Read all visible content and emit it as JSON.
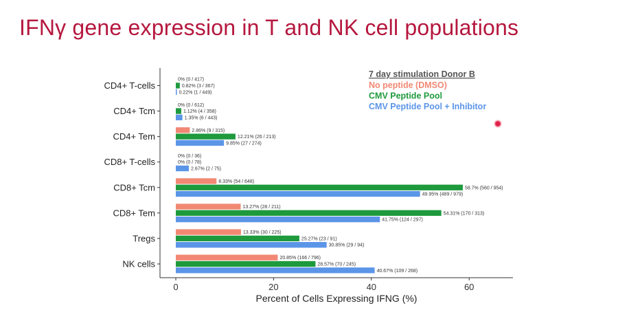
{
  "slide": {
    "title": "IFNγ gene expression in T and NK cell populations"
  },
  "colors": {
    "title": "#b5173e",
    "no_peptide": "#f28874",
    "cmv_pool": "#1e9a3d",
    "cmv_inhibitor": "#5b95e8"
  },
  "chart_data": {
    "type": "bar",
    "orientation": "horizontal",
    "legend_title": "7 day stimulation Donor B",
    "legend_position": "top-right",
    "xlabel": "Percent of Cells Expressing IFNG (%)",
    "ylabel": "",
    "xlim": [
      0,
      67
    ],
    "xticks": [
      "0",
      "20",
      "40",
      "60"
    ],
    "grid": false,
    "categories": [
      "CD4+ T-cells",
      "CD4+ Tcm",
      "CD4+ Tem",
      "CD8+ T-cells",
      "CD8+ Tcm",
      "CD8+ Tem",
      "Tregs",
      "NK cells"
    ],
    "series": [
      {
        "name": "No peptide (DMSO)",
        "color": "#f28874",
        "values": [
          0,
          0,
          2.86,
          0,
          8.33,
          13.27,
          13.33,
          20.85
        ],
        "labels": [
          "0% (0 / 417)",
          "0% (0 / 612)",
          "2.86% (9 / 315)",
          "0% (0 / 36)",
          "8.33% (54 / 648)",
          "13.27% (28 / 211)",
          "13.33% (30 / 225)",
          "20.85% (166 / 796)"
        ]
      },
      {
        "name": "CMV Peptide Pool",
        "color": "#1e9a3d",
        "values": [
          0.82,
          1.12,
          12.21,
          0,
          58.7,
          54.31,
          25.27,
          28.57
        ],
        "labels": [
          "0.82% (3 / 367)",
          "1.12% (4 / 358)",
          "12.21% (26 / 213)",
          "0% (0 / 78)",
          "58.7% (560 / 954)",
          "54.31% (170 / 313)",
          "25.27% (23 / 91)",
          "28.57% (70 / 245)"
        ]
      },
      {
        "name": "CMV Peptide Pool + Inhibitor",
        "color": "#5b95e8",
        "values": [
          0.22,
          1.35,
          9.85,
          2.67,
          49.95,
          41.75,
          30.85,
          40.67
        ],
        "labels": [
          "0.22% (1 / 449)",
          "1.35% (6 / 443)",
          "9.85% (27 / 274)",
          "2.67% (2 / 75)",
          "49.95% (489 / 979)",
          "41.75% (124 / 297)",
          "30.85% (29 / 94)",
          "40.67% (109 / 268)"
        ]
      }
    ]
  }
}
